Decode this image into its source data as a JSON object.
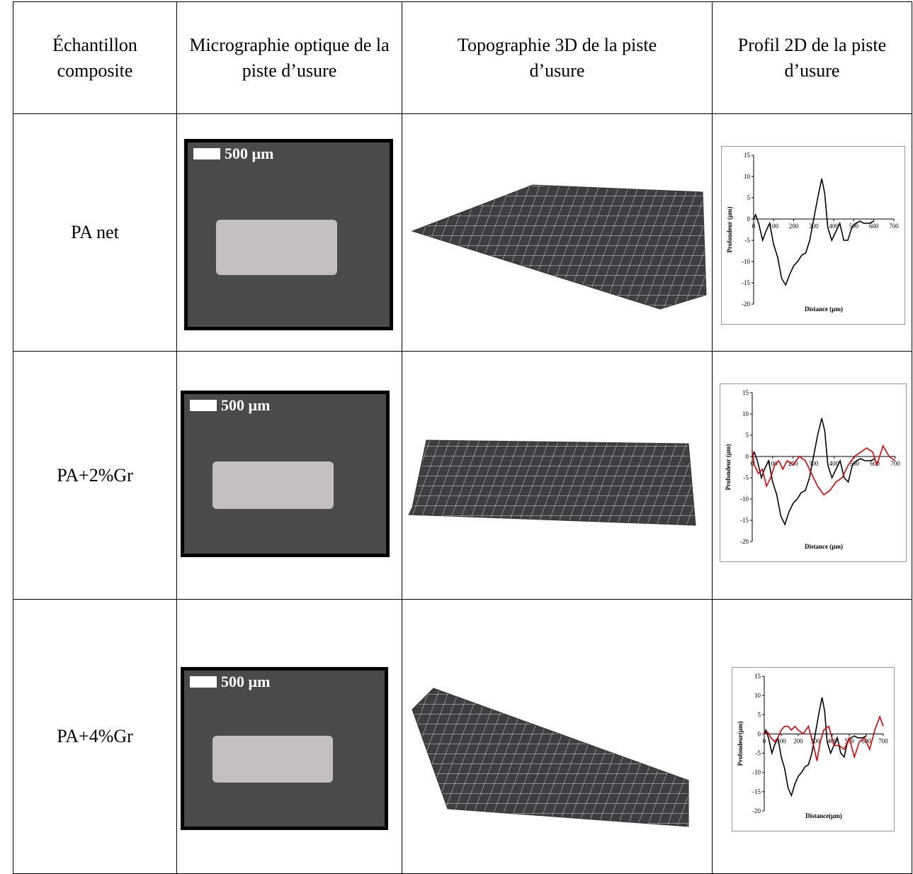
{
  "table": {
    "headers": [
      "Échantillon composite",
      "Micrographie optique de la piste d’usure",
      "Topographie 3D de la piste d’usure",
      "Profil 2D de la piste d’usure"
    ],
    "rows": [
      {
        "sample": "PA net",
        "scale_label": "500 µm",
        "profile": {
          "type": "line",
          "ylabel": "Profondeur (µm)",
          "xlabel": "Distance (µm)",
          "xlim": [
            0,
            700
          ],
          "ylim": [
            -20,
            15
          ],
          "xticks": [
            0,
            100,
            200,
            300,
            400,
            500,
            600,
            700
          ],
          "yticks": [
            15,
            10,
            5,
            0,
            -5,
            -10,
            -15,
            -20
          ],
          "series": [
            {
              "color": "#000000",
              "x": [
                0,
                10,
                25,
                45,
                60,
                80,
                100,
                120,
                140,
                160,
                180,
                200,
                220,
                240,
                260,
                280,
                300,
                320,
                340,
                355,
                370,
                390,
                410,
                430,
                450,
                470,
                490,
                510,
                530,
                550,
                580,
                600
              ],
              "values": [
                0,
                1,
                -1,
                -5,
                -3,
                -1,
                -6,
                -9,
                -14,
                -15.5,
                -13,
                -11,
                -10,
                -8.5,
                -8,
                -5,
                0,
                5,
                9.5,
                6,
                -2,
                -5,
                -3,
                -1,
                -5,
                -5,
                -2,
                -1,
                -0.5,
                -1,
                -1,
                -0.5
              ]
            }
          ]
        }
      },
      {
        "sample": "PA+2%Gr",
        "scale_label": "500 µm",
        "profile": {
          "type": "line",
          "ylabel": "Profondeur (µm)",
          "xlabel": "Distance (µm)",
          "xlim": [
            0,
            700
          ],
          "ylim": [
            -20,
            15
          ],
          "xticks": [
            0,
            100,
            200,
            300,
            400,
            500,
            600,
            700
          ],
          "yticks": [
            15,
            10,
            5,
            0,
            -5,
            -10,
            -15,
            -20
          ],
          "series": [
            {
              "color": "#000000",
              "x": [
                0,
                10,
                25,
                45,
                60,
                80,
                100,
                120,
                140,
                160,
                180,
                200,
                220,
                240,
                260,
                280,
                300,
                320,
                340,
                355,
                370,
                390,
                410,
                430,
                450,
                470,
                490,
                510,
                530,
                550,
                580,
                600
              ],
              "values": [
                0,
                1,
                -1,
                -5,
                -3,
                -1,
                -6,
                -9,
                -14,
                -16,
                -13,
                -11,
                -10,
                -8.5,
                -8,
                -5,
                0,
                5,
                9,
                6,
                -2,
                -5,
                -3,
                -1,
                -5,
                -6,
                -2,
                -1,
                -0.5,
                -1,
                -1,
                -0.5
              ]
            },
            {
              "color": "#e00000",
              "x": [
                0,
                10,
                30,
                50,
                70,
                90,
                110,
                130,
                150,
                170,
                200,
                230,
                260,
                290,
                320,
                350,
                380,
                410,
                440,
                470,
                500,
                530,
                560,
                590,
                610,
                640,
                670,
                700
              ],
              "values": [
                1.5,
                -2,
                -4,
                -3,
                -7,
                -5,
                -2,
                -1,
                -3,
                -1,
                -2,
                0,
                -1,
                -4,
                -7,
                -9,
                -8,
                -6,
                -5,
                -2,
                0,
                1,
                2,
                1,
                -2,
                2.5,
                0,
                -1
              ]
            }
          ]
        }
      },
      {
        "sample": "PA+4%Gr",
        "scale_label": "500 µm",
        "profile": {
          "type": "line",
          "ylabel": "Profondeur(µm)",
          "xlabel": "Distance(µm)",
          "xlim": [
            0,
            700
          ],
          "ylim": [
            -20,
            15
          ],
          "xticks": [
            0,
            100,
            200,
            300,
            400,
            500,
            600,
            700
          ],
          "yticks": [
            15,
            10,
            5,
            0,
            -5,
            -10,
            -15,
            -20
          ],
          "series": [
            {
              "color": "#000000",
              "x": [
                0,
                10,
                25,
                45,
                60,
                80,
                100,
                120,
                140,
                160,
                180,
                200,
                220,
                240,
                260,
                280,
                300,
                320,
                340,
                355,
                370,
                390,
                410,
                430,
                450,
                470,
                490,
                510,
                530,
                550,
                580,
                600
              ],
              "values": [
                0,
                1,
                -1,
                -5,
                -3,
                -1,
                -6,
                -9,
                -14,
                -16,
                -13,
                -11,
                -10,
                -8.5,
                -8,
                -5,
                0,
                5,
                9.5,
                6,
                -2,
                -5,
                -3,
                -1,
                -5,
                -6,
                -2,
                -1,
                -0.5,
                -1,
                -1,
                -0.5
              ]
            },
            {
              "color": "#e00000",
              "x": [
                0,
                20,
                40,
                60,
                80,
                100,
                120,
                140,
                160,
                180,
                200,
                230,
                260,
                290,
                310,
                330,
                350,
                380,
                410,
                440,
                470,
                500,
                530,
                560,
                590,
                620,
                650,
                680,
                700
              ],
              "values": [
                0,
                0.5,
                -1,
                -2,
                -1,
                1,
                2,
                2,
                1,
                2,
                1,
                0,
                2,
                -3,
                -7,
                -2,
                1,
                2,
                -3,
                -3,
                -4,
                -1,
                -6,
                -2,
                -1,
                -4,
                1,
                4.5,
                2
              ]
            }
          ]
        }
      }
    ]
  }
}
